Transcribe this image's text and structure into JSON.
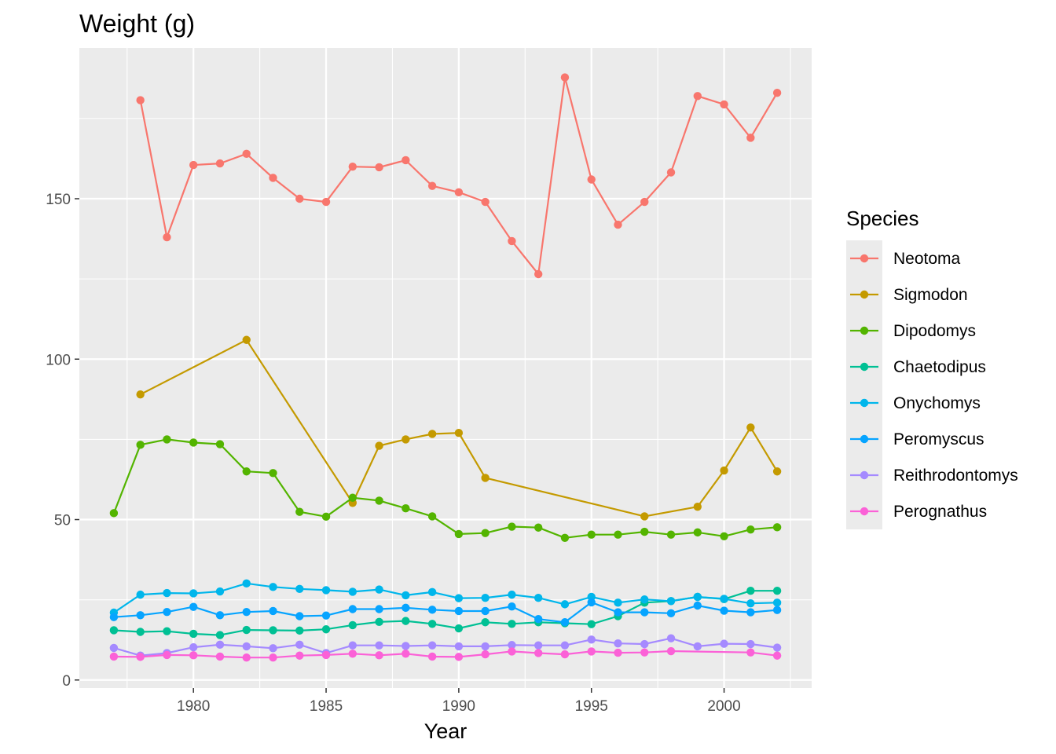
{
  "chart_data": {
    "type": "line",
    "title": "Weight (g)",
    "xlabel": "Year",
    "ylabel": "",
    "xlim": [
      1975.7,
      2003.3
    ],
    "ylim": [
      -2.5,
      197
    ],
    "x_ticks": [
      1980,
      1985,
      1990,
      1995,
      2000
    ],
    "y_ticks": [
      0,
      50,
      100,
      150
    ],
    "grid": true,
    "legend": {
      "title": "Species",
      "position": "right"
    },
    "series": [
      {
        "name": "Neotoma",
        "color": "#F8766D",
        "x": [
          1978,
          1979,
          1980,
          1981,
          1982,
          1983,
          1984,
          1985,
          1986,
          1987,
          1988,
          1989,
          1990,
          1991,
          1992,
          1993,
          1994,
          1995,
          1996,
          1997,
          1998,
          1999,
          2000,
          2001,
          2002
        ],
        "y": [
          180.7,
          138.0,
          160.5,
          161.0,
          164.0,
          156.5,
          150.0,
          149.0,
          160.0,
          159.8,
          162.0,
          154.0,
          152.0,
          149.0,
          136.8,
          126.5,
          187.8,
          156.0,
          141.9,
          149.0,
          158.2,
          182.0,
          179.4,
          169.0,
          183.0
        ]
      },
      {
        "name": "Sigmodon",
        "color": "#C49A00",
        "x": [
          1978,
          1982,
          1986,
          1987,
          1988,
          1989,
          1990,
          1991,
          1997,
          1999,
          2000,
          2001,
          2002
        ],
        "y": [
          89.0,
          106.0,
          55.2,
          73.0,
          75.0,
          76.7,
          77.0,
          63.0,
          51.0,
          54.0,
          65.3,
          78.7,
          65.0
        ]
      },
      {
        "name": "Dipodomys",
        "color": "#53B400",
        "x": [
          1977,
          1978,
          1979,
          1980,
          1981,
          1982,
          1983,
          1984,
          1985,
          1986,
          1987,
          1988,
          1989,
          1990,
          1991,
          1992,
          1993,
          1994,
          1995,
          1996,
          1997,
          1998,
          1999,
          2000,
          2001,
          2002
        ],
        "y": [
          52.0,
          73.3,
          75.0,
          74.0,
          73.5,
          65.0,
          64.5,
          52.4,
          50.9,
          56.8,
          55.9,
          53.5,
          51.0,
          45.5,
          45.8,
          47.8,
          47.5,
          44.3,
          45.3,
          45.3,
          46.2,
          45.3,
          46.0,
          44.8,
          46.9,
          47.6
        ]
      },
      {
        "name": "Chaetodipus",
        "color": "#00C094",
        "x": [
          1977,
          1978,
          1979,
          1980,
          1981,
          1982,
          1983,
          1984,
          1985,
          1986,
          1987,
          1988,
          1989,
          1990,
          1991,
          1992,
          1993,
          1994,
          1995,
          1996,
          1997,
          1998,
          1999,
          2000,
          2001,
          2002
        ],
        "y": [
          15.5,
          15.0,
          15.2,
          14.4,
          14.0,
          15.6,
          15.5,
          15.4,
          15.8,
          17.1,
          18.1,
          18.4,
          17.5,
          16.1,
          18.0,
          17.5,
          18.0,
          17.7,
          17.4,
          19.9,
          24.1,
          24.6,
          25.9,
          25.2,
          27.8,
          27.8
        ]
      },
      {
        "name": "Onychomys",
        "color": "#00B6EB",
        "x": [
          1977,
          1978,
          1979,
          1980,
          1981,
          1982,
          1983,
          1984,
          1985,
          1986,
          1987,
          1988,
          1989,
          1990,
          1991,
          1992,
          1993,
          1994,
          1995,
          1996,
          1997,
          1998,
          1999,
          2000,
          2001,
          2002
        ],
        "y": [
          21.0,
          26.6,
          27.1,
          27.0,
          27.6,
          30.1,
          29.0,
          28.4,
          28.0,
          27.5,
          28.2,
          26.4,
          27.4,
          25.5,
          25.6,
          26.6,
          25.6,
          23.6,
          25.9,
          24.1,
          25.1,
          24.6,
          25.9,
          25.3,
          23.9,
          24.1
        ]
      },
      {
        "name": "Peromyscus",
        "color": "#06A4FF",
        "x": [
          1977,
          1978,
          1979,
          1980,
          1981,
          1982,
          1983,
          1984,
          1985,
          1986,
          1987,
          1988,
          1989,
          1990,
          1991,
          1992,
          1993,
          1994,
          1995,
          1996,
          1997,
          1998,
          1999,
          2000,
          2001,
          2002
        ],
        "y": [
          19.6,
          20.2,
          21.2,
          22.8,
          20.2,
          21.2,
          21.5,
          19.9,
          20.1,
          22.1,
          22.1,
          22.5,
          21.9,
          21.5,
          21.5,
          22.9,
          19.0,
          18.0,
          24.2,
          21.1,
          21.1,
          20.8,
          23.2,
          21.6,
          21.1,
          21.8
        ]
      },
      {
        "name": "Reithrodontomys",
        "color": "#A58AFF",
        "x": [
          1977,
          1978,
          1979,
          1980,
          1981,
          1982,
          1983,
          1984,
          1985,
          1986,
          1987,
          1988,
          1989,
          1990,
          1991,
          1992,
          1993,
          1994,
          1995,
          1996,
          1997,
          1998,
          1999,
          2000,
          2001,
          2002
        ],
        "y": [
          10.0,
          7.6,
          8.4,
          10.2,
          11.0,
          10.5,
          9.9,
          11.0,
          8.4,
          10.8,
          10.8,
          10.6,
          10.8,
          10.5,
          10.5,
          10.9,
          10.8,
          10.8,
          12.6,
          11.4,
          11.2,
          13.0,
          10.5,
          11.3,
          11.2,
          10.1
        ]
      },
      {
        "name": "Perognathus",
        "color": "#FB61D7",
        "x": [
          1977,
          1978,
          1979,
          1980,
          1981,
          1982,
          1983,
          1984,
          1985,
          1986,
          1987,
          1988,
          1989,
          1990,
          1991,
          1992,
          1993,
          1994,
          1995,
          1996,
          1997,
          1998,
          2001,
          2002
        ],
        "y": [
          7.3,
          7.2,
          7.8,
          7.7,
          7.3,
          7.0,
          7.0,
          7.6,
          7.8,
          8.2,
          7.7,
          8.2,
          7.3,
          7.2,
          8.0,
          8.9,
          8.4,
          8.0,
          8.9,
          8.5,
          8.6,
          9.0,
          8.6,
          7.6
        ]
      }
    ]
  }
}
